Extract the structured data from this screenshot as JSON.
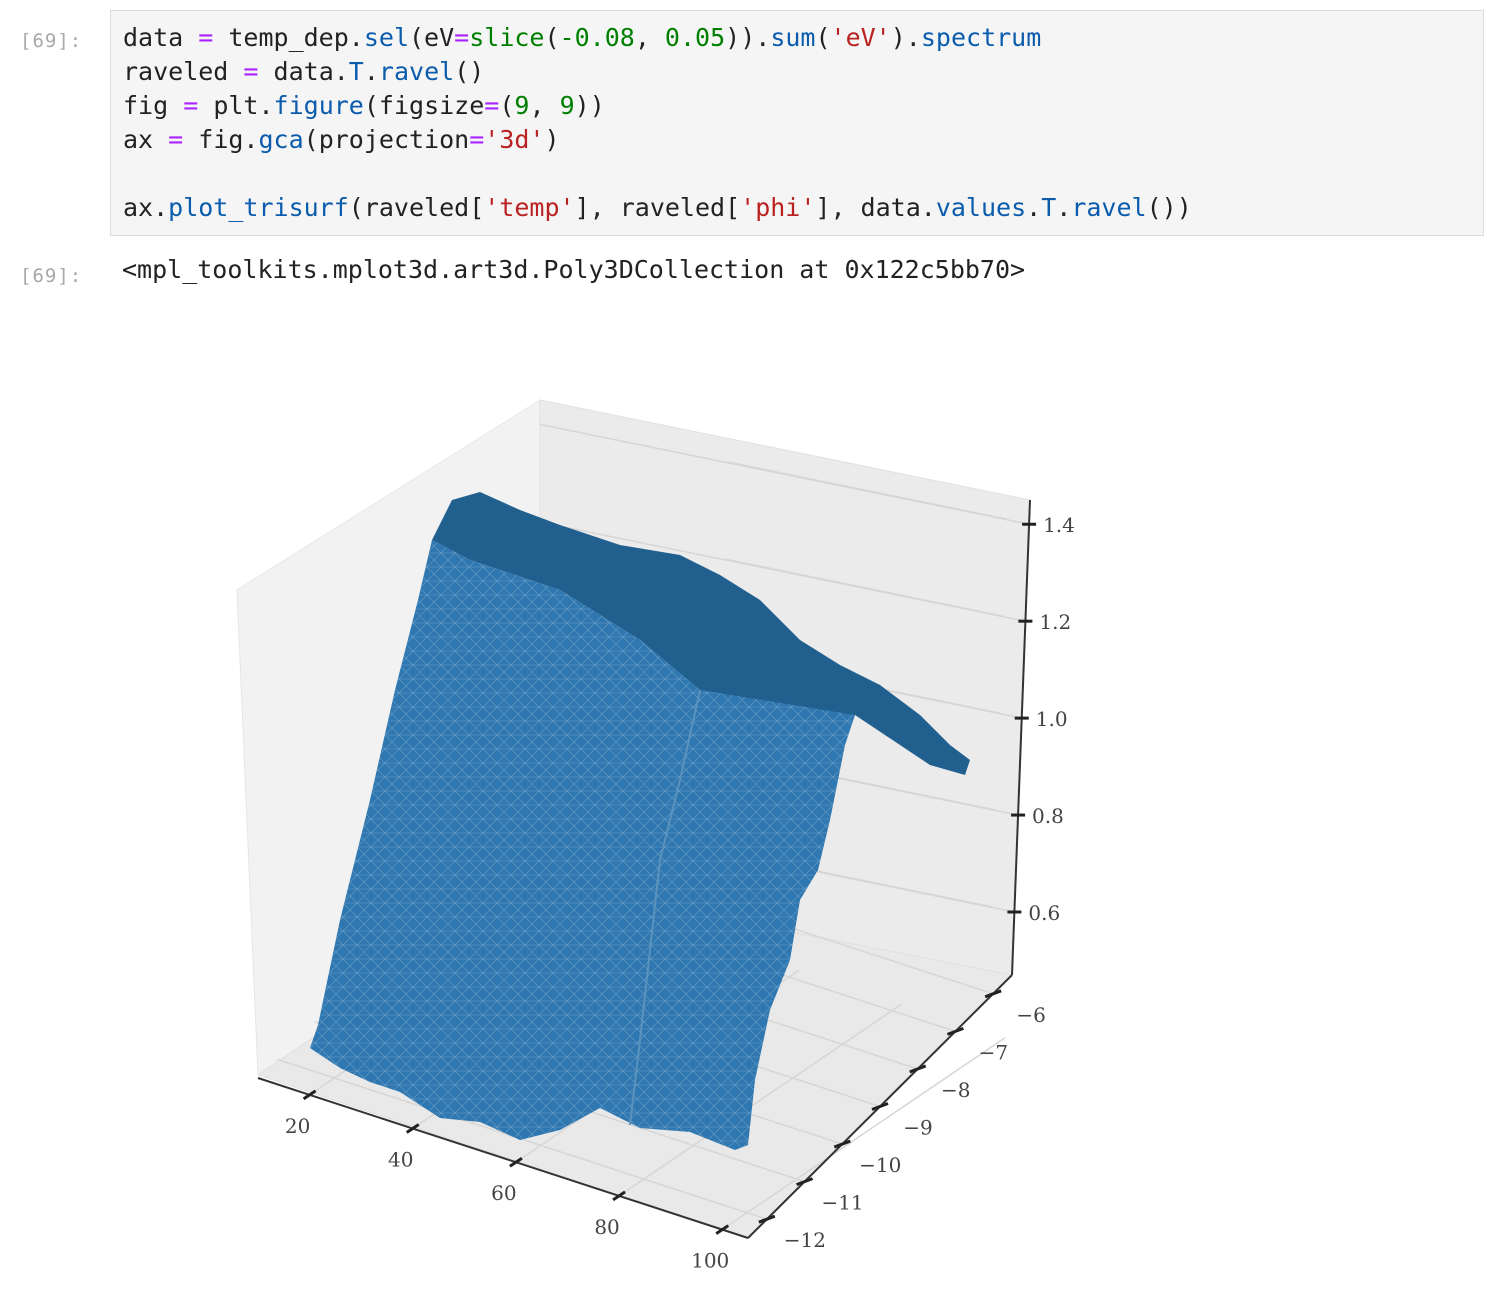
{
  "input_prompt": "[69]:",
  "output_prompt": "[69]:",
  "code_lines": [
    [
      [
        "data ",
        ""
      ],
      [
        "=",
        "op"
      ],
      [
        " temp_dep.",
        ""
      ],
      [
        "sel",
        "fn"
      ],
      [
        "(eV",
        ""
      ],
      [
        "=",
        "op"
      ],
      [
        "slice",
        "num"
      ],
      [
        "(",
        ""
      ],
      [
        "-0.08",
        "num"
      ],
      [
        ", ",
        ""
      ],
      [
        "0.05",
        "num"
      ],
      [
        "))",
        ""
      ],
      [
        ".",
        ""
      ],
      [
        "sum",
        "fn"
      ],
      [
        "(",
        ""
      ],
      [
        "'eV'",
        "str"
      ],
      [
        ").",
        ""
      ],
      [
        "spectrum",
        "fn"
      ]
    ],
    [
      [
        "raveled ",
        ""
      ],
      [
        "=",
        "op"
      ],
      [
        " data.",
        ""
      ],
      [
        "T",
        "fn"
      ],
      [
        ".",
        ""
      ],
      [
        "ravel",
        "fn"
      ],
      [
        "()",
        ""
      ]
    ],
    [
      [
        "fig ",
        ""
      ],
      [
        "=",
        "op"
      ],
      [
        " plt.",
        ""
      ],
      [
        "figure",
        "fn"
      ],
      [
        "(figsize",
        ""
      ],
      [
        "=",
        "op"
      ],
      [
        "(",
        ""
      ],
      [
        "9",
        "num"
      ],
      [
        ", ",
        ""
      ],
      [
        "9",
        "num"
      ],
      [
        "))",
        ""
      ]
    ],
    [
      [
        "ax ",
        ""
      ],
      [
        "=",
        "op"
      ],
      [
        " fig.",
        ""
      ],
      [
        "gca",
        "fn"
      ],
      [
        "(projection",
        ""
      ],
      [
        "=",
        "op"
      ],
      [
        "'3d'",
        "str"
      ],
      [
        ")",
        ""
      ]
    ],
    [],
    [
      [
        "ax.",
        ""
      ],
      [
        "plot_trisurf",
        "fn"
      ],
      [
        "(raveled[",
        ""
      ],
      [
        "'temp'",
        "str"
      ],
      [
        "], raveled[",
        ""
      ],
      [
        "'phi'",
        "str"
      ],
      [
        "], data.",
        ""
      ],
      [
        "values",
        "fn"
      ],
      [
        ".",
        ""
      ],
      [
        "T",
        "fn"
      ],
      [
        ".",
        ""
      ],
      [
        "ravel",
        "fn"
      ],
      [
        "())",
        ""
      ]
    ]
  ],
  "output_text": "<mpl_toolkits.mplot3d.art3d.Poly3DCollection at 0x122c5bb70>",
  "colors": {
    "surface": "#2e77b0",
    "surface_dark": "#1f5e8c",
    "pane": "#f2f2f2",
    "grid": "#d8d8d8",
    "axis": "#333333"
  },
  "chart_data": {
    "type": "surface3d",
    "title": "",
    "x_ticks": [
      "20",
      "40",
      "60",
      "80",
      "100"
    ],
    "y_ticks": [
      "−12",
      "−11",
      "−10",
      "−9",
      "−8",
      "−7",
      "−6"
    ],
    "z_ticks": [
      "0.6",
      "0.8",
      "1.0",
      "1.2",
      "1.4"
    ],
    "xlim": [
      10,
      105
    ],
    "ylim": [
      -12.5,
      -5.5
    ],
    "zlim": [
      0.47,
      1.45
    ],
    "grid": true,
    "surface": {
      "temp_values": [
        13,
        100
      ],
      "phi_values": [
        -12,
        -5.5
      ],
      "intensity_range": [
        0.47,
        1.44
      ],
      "shape": "ridge — intensity highest near phi ≈ -10 (≈1.4 at low temp, ≈1.0 at high temp), dropping to ≈0.5 at phi = -12 and ≈0.9 at phi = -5.5"
    }
  }
}
